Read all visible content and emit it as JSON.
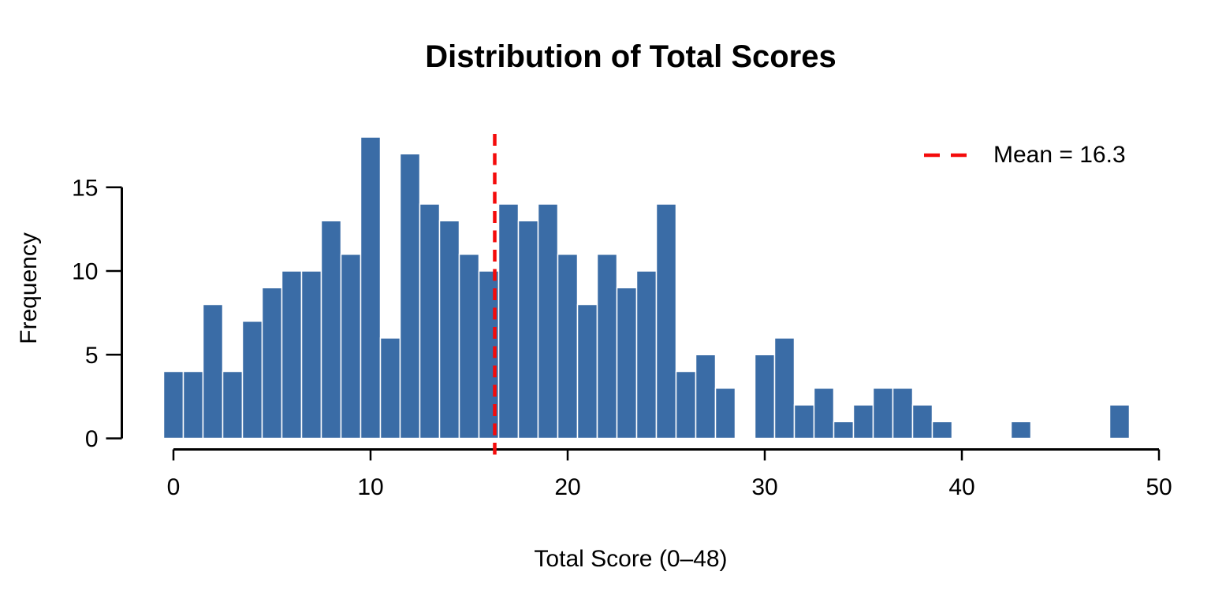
{
  "chart_data": {
    "type": "bar",
    "title": "Distribution of Total Scores",
    "xlabel": "Total Score (0–48)",
    "ylabel": "Frequency",
    "x": [
      0,
      1,
      2,
      3,
      4,
      5,
      6,
      7,
      8,
      9,
      10,
      11,
      12,
      13,
      14,
      15,
      16,
      17,
      18,
      19,
      20,
      21,
      22,
      23,
      24,
      25,
      26,
      27,
      28,
      29,
      30,
      31,
      32,
      33,
      34,
      35,
      36,
      37,
      38,
      39,
      40,
      41,
      42,
      43,
      44,
      45,
      46,
      47,
      48
    ],
    "values": [
      4,
      4,
      8,
      4,
      7,
      9,
      10,
      10,
      13,
      11,
      18,
      6,
      17,
      14,
      13,
      11,
      10,
      14,
      13,
      14,
      11,
      8,
      11,
      9,
      10,
      14,
      4,
      5,
      3,
      0,
      5,
      6,
      2,
      3,
      1,
      2,
      3,
      3,
      2,
      1,
      0,
      0,
      0,
      1,
      0,
      0,
      0,
      0,
      2
    ],
    "bin_width": 1,
    "xlim": [
      0,
      50
    ],
    "ylim": [
      0,
      15
    ],
    "x_ticks": [
      0,
      10,
      20,
      30,
      40,
      50
    ],
    "y_ticks": [
      0,
      5,
      10,
      15
    ],
    "grid": false,
    "mean_value": 16.3,
    "legend": {
      "label": "Mean = 16.3",
      "position": "top-right",
      "line_style": "dashed"
    },
    "colors": {
      "bar_fill": "#3A6CA6",
      "bar_stroke": "#FFFFFF",
      "mean_line": "#F40B0B",
      "axis": "#000000",
      "text": "#000000"
    }
  }
}
